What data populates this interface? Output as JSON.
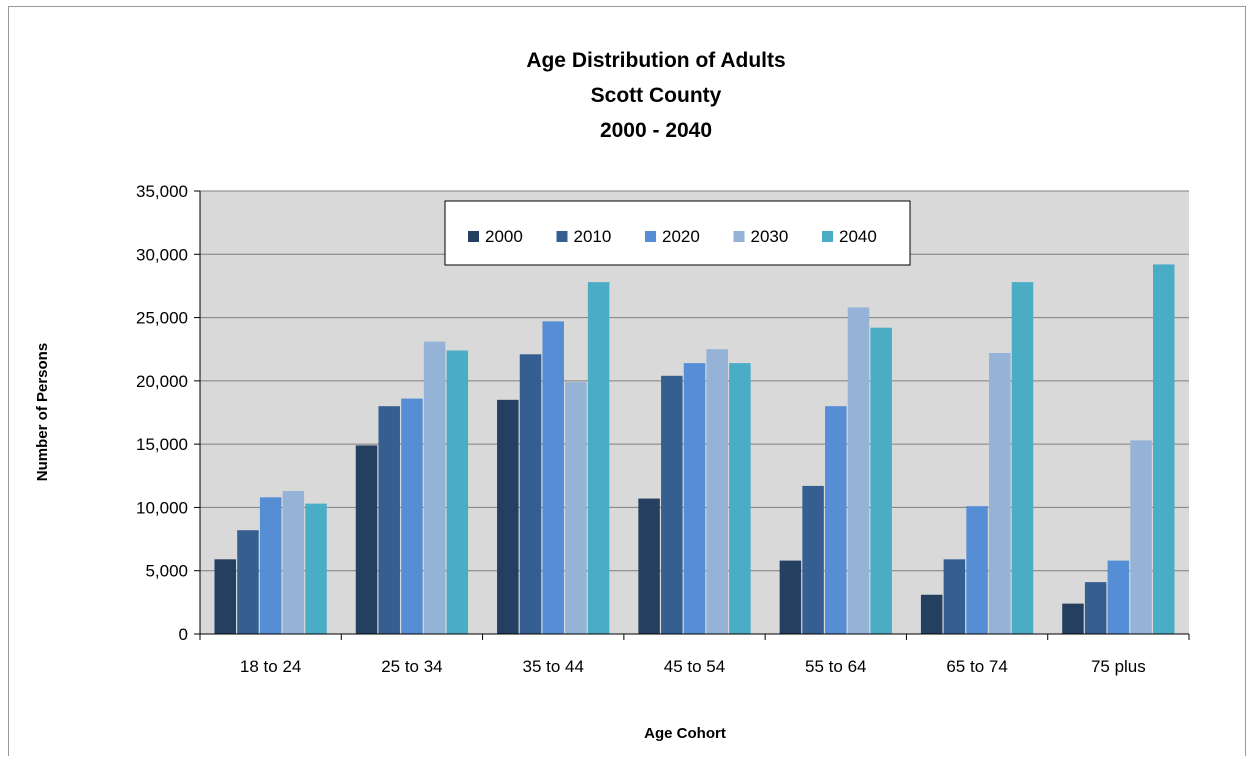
{
  "chart_data": {
    "type": "bar",
    "title_lines": [
      "Age Distribution of Adults",
      "Scott County",
      "2000 - 2040"
    ],
    "xlabel": "Age Cohort",
    "ylabel": "Number of Persons",
    "categories": [
      "18 to 24",
      "25 to 34",
      "35 to 44",
      "45 to 54",
      "55 to 64",
      "65 to 74",
      "75 plus"
    ],
    "ylim": [
      0,
      35000
    ],
    "yticks": [
      0,
      5000,
      10000,
      15000,
      20000,
      25000,
      30000,
      35000
    ],
    "ytick_labels": [
      "0",
      "5,000",
      "10,000",
      "15,000",
      "20,000",
      "25,000",
      "30,000",
      "35,000"
    ],
    "grid": true,
    "legend_position": "top-center",
    "series": [
      {
        "name": "2000",
        "color": "#243F60",
        "values": [
          5900,
          14900,
          18500,
          10700,
          5800,
          3100,
          2400
        ]
      },
      {
        "name": "2010",
        "color": "#365F91",
        "values": [
          8200,
          18000,
          22100,
          20400,
          11700,
          5900,
          4100
        ]
      },
      {
        "name": "2020",
        "color": "#558ED5",
        "values": [
          10800,
          18600,
          24700,
          21400,
          18000,
          10100,
          5800
        ]
      },
      {
        "name": "2030",
        "color": "#95B3D7",
        "values": [
          11300,
          23100,
          19900,
          22500,
          25800,
          22200,
          15300
        ]
      },
      {
        "name": "2040",
        "color": "#4BACC6",
        "values": [
          10300,
          22400,
          27800,
          21400,
          24200,
          27800,
          29200
        ]
      }
    ],
    "plot_background": "#D9D9D9"
  }
}
